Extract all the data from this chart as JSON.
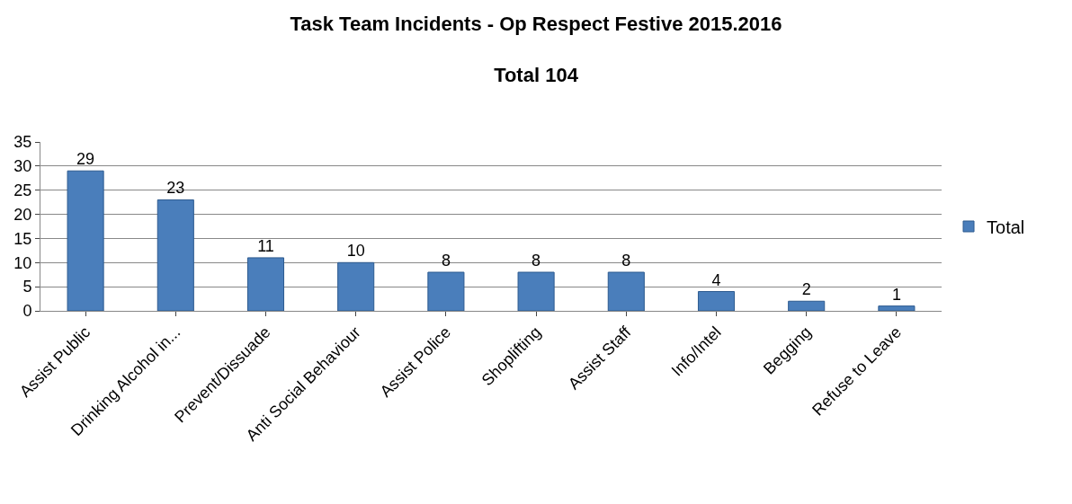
{
  "chart_data": {
    "type": "bar",
    "title": "Task Team Incidents - Op Respect Festive 2015.2016",
    "subtitle": "Total 104",
    "categories": [
      "Assist Public",
      "Drinking Alcohol in...",
      "Prevent/Dissuade",
      "Anti Social Behaviour",
      "Assist Police",
      "Shoplifting",
      "Assist Staff",
      "Info/Intel",
      "Begging",
      "Refuse to Leave"
    ],
    "series": [
      {
        "name": "Total",
        "color": "#4a7ebb",
        "values": [
          29,
          23,
          11,
          10,
          8,
          8,
          8,
          4,
          2,
          1
        ]
      }
    ],
    "ylim": [
      0,
      35
    ],
    "yticks": [
      0,
      5,
      10,
      15,
      20,
      25,
      30,
      35
    ],
    "grid": "y",
    "legend": "right",
    "data_labels": true
  }
}
